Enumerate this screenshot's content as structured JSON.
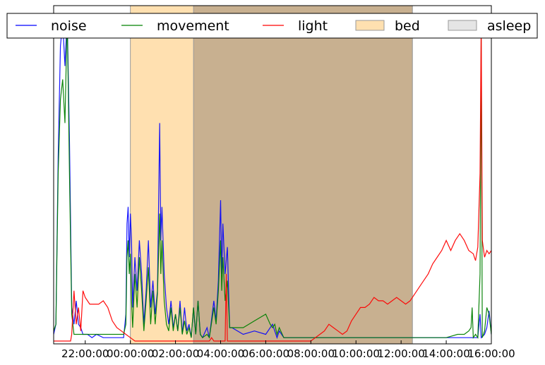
{
  "chart_data": {
    "type": "line",
    "title": "",
    "xlabel": "",
    "ylabel": "",
    "x_unit": "hours since 20:00 of first day",
    "xlim": [
      0.6,
      20.0
    ],
    "ylim": [
      0,
      1
    ],
    "x_tick_labels": [
      "22:00:00",
      "00:00:00",
      "02:00:00",
      "04:00:00",
      "06:00:00",
      "08:00:00",
      "10:00:00",
      "12:00:00",
      "14:00:00",
      "16:00:00"
    ],
    "x_tick_values": [
      2,
      4,
      6,
      8,
      10,
      12,
      14,
      16,
      18,
      20
    ],
    "grid": false,
    "legend": {
      "placement": "top",
      "entries": [
        {
          "label": "noise",
          "kind": "line",
          "color": "#0000ff"
        },
        {
          "label": "movement",
          "kind": "line",
          "color": "#008000"
        },
        {
          "label": "light",
          "kind": "line",
          "color": "#ff0000"
        },
        {
          "label": "bed",
          "kind": "patch",
          "color": "#ffe0b0"
        },
        {
          "label": "asleep",
          "kind": "patch",
          "color": "#e5e5e5"
        }
      ]
    },
    "spans": [
      {
        "name": "bed",
        "start": 4.0,
        "end": 16.5,
        "color": "#ffe0b0"
      },
      {
        "name": "asleep",
        "start": 6.8,
        "end": 16.5,
        "color": "#c8b090"
      }
    ],
    "series": [
      {
        "name": "noise",
        "color": "#0000ff",
        "points": [
          [
            0.6,
            0.02
          ],
          [
            0.7,
            0.05
          ],
          [
            0.8,
            0.55
          ],
          [
            0.9,
            0.88
          ],
          [
            1.0,
            0.95
          ],
          [
            1.1,
            0.82
          ],
          [
            1.2,
            0.97
          ],
          [
            1.3,
            0.6
          ],
          [
            1.4,
            0.1
          ],
          [
            1.5,
            0.05
          ],
          [
            1.6,
            0.12
          ],
          [
            1.7,
            0.05
          ],
          [
            1.8,
            0.04
          ],
          [
            1.9,
            0.02
          ],
          [
            2.1,
            0.02
          ],
          [
            2.3,
            0.01
          ],
          [
            2.5,
            0.02
          ],
          [
            2.8,
            0.01
          ],
          [
            3.2,
            0.01
          ],
          [
            3.5,
            0.01
          ],
          [
            3.7,
            0.01
          ],
          [
            3.8,
            0.08
          ],
          [
            3.85,
            0.35
          ],
          [
            3.9,
            0.4
          ],
          [
            3.95,
            0.25
          ],
          [
            4.0,
            0.38
          ],
          [
            4.05,
            0.3
          ],
          [
            4.1,
            0.1
          ],
          [
            4.2,
            0.25
          ],
          [
            4.3,
            0.15
          ],
          [
            4.4,
            0.3
          ],
          [
            4.5,
            0.2
          ],
          [
            4.6,
            0.05
          ],
          [
            4.7,
            0.15
          ],
          [
            4.8,
            0.3
          ],
          [
            4.9,
            0.1
          ],
          [
            5.0,
            0.18
          ],
          [
            5.1,
            0.08
          ],
          [
            5.2,
            0.15
          ],
          [
            5.3,
            0.65
          ],
          [
            5.35,
            0.3
          ],
          [
            5.4,
            0.4
          ],
          [
            5.5,
            0.2
          ],
          [
            5.6,
            0.1
          ],
          [
            5.7,
            0.05
          ],
          [
            5.8,
            0.12
          ],
          [
            5.9,
            0.04
          ],
          [
            6.0,
            0.08
          ],
          [
            6.1,
            0.03
          ],
          [
            6.2,
            0.12
          ],
          [
            6.3,
            0.02
          ],
          [
            6.4,
            0.1
          ],
          [
            6.5,
            0.03
          ],
          [
            6.6,
            0.05
          ],
          [
            6.7,
            0.01
          ],
          [
            6.8,
            0.1
          ],
          [
            6.9,
            0.02
          ],
          [
            7.0,
            0.12
          ],
          [
            7.1,
            0.02
          ],
          [
            7.2,
            0.01
          ],
          [
            7.4,
            0.04
          ],
          [
            7.5,
            0.01
          ],
          [
            7.7,
            0.12
          ],
          [
            7.8,
            0.06
          ],
          [
            7.9,
            0.18
          ],
          [
            8.0,
            0.42
          ],
          [
            8.05,
            0.2
          ],
          [
            8.1,
            0.35
          ],
          [
            8.2,
            0.2
          ],
          [
            8.3,
            0.28
          ],
          [
            8.4,
            0.04
          ],
          [
            8.5,
            0.04
          ],
          [
            9.0,
            0.02
          ],
          [
            9.5,
            0.03
          ],
          [
            10.0,
            0.02
          ],
          [
            10.3,
            0.05
          ],
          [
            10.5,
            0.01
          ],
          [
            10.6,
            0.03
          ],
          [
            10.8,
            0.01
          ],
          [
            11.0,
            0.01
          ],
          [
            11.5,
            0.01
          ],
          [
            12.0,
            0.01
          ],
          [
            12.5,
            0.01
          ],
          [
            13.0,
            0.01
          ],
          [
            13.5,
            0.01
          ],
          [
            14.0,
            0.01
          ],
          [
            14.5,
            0.01
          ],
          [
            15.0,
            0.01
          ],
          [
            15.5,
            0.01
          ],
          [
            16.0,
            0.01
          ],
          [
            16.5,
            0.01
          ],
          [
            17.0,
            0.01
          ],
          [
            17.5,
            0.01
          ],
          [
            18.0,
            0.01
          ],
          [
            18.5,
            0.01
          ],
          [
            19.0,
            0.01
          ],
          [
            19.4,
            0.01
          ],
          [
            19.5,
            0.08
          ],
          [
            19.55,
            0.01
          ],
          [
            19.7,
            0.02
          ],
          [
            19.8,
            0.04
          ],
          [
            19.9,
            0.09
          ],
          [
            20.0,
            0.02
          ]
        ]
      },
      {
        "name": "movement",
        "color": "#008000",
        "points": [
          [
            0.6,
            0.03
          ],
          [
            0.7,
            0.05
          ],
          [
            0.8,
            0.5
          ],
          [
            0.9,
            0.72
          ],
          [
            1.0,
            0.78
          ],
          [
            1.1,
            0.65
          ],
          [
            1.2,
            0.97
          ],
          [
            1.3,
            0.5
          ],
          [
            1.4,
            0.08
          ],
          [
            1.5,
            0.02
          ],
          [
            1.6,
            0.02
          ],
          [
            2.0,
            0.02
          ],
          [
            2.5,
            0.02
          ],
          [
            3.0,
            0.02
          ],
          [
            3.5,
            0.02
          ],
          [
            3.7,
            0.02
          ],
          [
            3.8,
            0.05
          ],
          [
            3.85,
            0.25
          ],
          [
            3.9,
            0.3
          ],
          [
            3.95,
            0.2
          ],
          [
            4.0,
            0.26
          ],
          [
            4.05,
            0.12
          ],
          [
            4.1,
            0.04
          ],
          [
            4.2,
            0.2
          ],
          [
            4.3,
            0.1
          ],
          [
            4.4,
            0.25
          ],
          [
            4.5,
            0.15
          ],
          [
            4.6,
            0.03
          ],
          [
            4.7,
            0.12
          ],
          [
            4.8,
            0.22
          ],
          [
            4.9,
            0.05
          ],
          [
            5.0,
            0.15
          ],
          [
            5.1,
            0.05
          ],
          [
            5.2,
            0.14
          ],
          [
            5.3,
            0.38
          ],
          [
            5.35,
            0.2
          ],
          [
            5.4,
            0.3
          ],
          [
            5.5,
            0.12
          ],
          [
            5.6,
            0.05
          ],
          [
            5.7,
            0.03
          ],
          [
            5.8,
            0.1
          ],
          [
            5.9,
            0.03
          ],
          [
            6.0,
            0.08
          ],
          [
            6.1,
            0.03
          ],
          [
            6.2,
            0.1
          ],
          [
            6.3,
            0.02
          ],
          [
            6.4,
            0.06
          ],
          [
            6.5,
            0.02
          ],
          [
            6.6,
            0.04
          ],
          [
            6.7,
            0.01
          ],
          [
            6.8,
            0.1
          ],
          [
            6.9,
            0.02
          ],
          [
            7.0,
            0.12
          ],
          [
            7.1,
            0.02
          ],
          [
            7.2,
            0.01
          ],
          [
            7.4,
            0.02
          ],
          [
            7.5,
            0.01
          ],
          [
            7.7,
            0.1
          ],
          [
            7.8,
            0.05
          ],
          [
            7.9,
            0.15
          ],
          [
            8.0,
            0.3
          ],
          [
            8.05,
            0.15
          ],
          [
            8.1,
            0.25
          ],
          [
            8.2,
            0.12
          ],
          [
            8.3,
            0.18
          ],
          [
            8.4,
            0.04
          ],
          [
            8.5,
            0.04
          ],
          [
            9.0,
            0.04
          ],
          [
            9.5,
            0.06
          ],
          [
            10.0,
            0.08
          ],
          [
            10.2,
            0.05
          ],
          [
            10.3,
            0.04
          ],
          [
            10.4,
            0.05
          ],
          [
            10.5,
            0.02
          ],
          [
            10.6,
            0.04
          ],
          [
            10.8,
            0.01
          ],
          [
            11.0,
            0.01
          ],
          [
            11.5,
            0.01
          ],
          [
            12.0,
            0.01
          ],
          [
            12.5,
            0.01
          ],
          [
            13.0,
            0.01
          ],
          [
            13.5,
            0.01
          ],
          [
            14.0,
            0.01
          ],
          [
            14.5,
            0.01
          ],
          [
            15.0,
            0.01
          ],
          [
            15.5,
            0.01
          ],
          [
            16.0,
            0.01
          ],
          [
            16.5,
            0.01
          ],
          [
            17.0,
            0.01
          ],
          [
            17.5,
            0.01
          ],
          [
            18.0,
            0.01
          ],
          [
            18.5,
            0.02
          ],
          [
            18.8,
            0.02
          ],
          [
            19.0,
            0.03
          ],
          [
            19.1,
            0.04
          ],
          [
            19.15,
            0.1
          ],
          [
            19.2,
            0.01
          ],
          [
            19.3,
            0.02
          ],
          [
            19.4,
            0.01
          ],
          [
            19.5,
            0.2
          ],
          [
            19.55,
            0.9
          ],
          [
            19.6,
            0.01
          ],
          [
            19.7,
            0.03
          ],
          [
            19.8,
            0.1
          ],
          [
            19.9,
            0.08
          ],
          [
            20.0,
            0.02
          ]
        ]
      },
      {
        "name": "light",
        "color": "#ff0000",
        "points": [
          [
            0.6,
            0.0
          ],
          [
            1.0,
            0.0
          ],
          [
            1.35,
            0.0
          ],
          [
            1.4,
            0.02
          ],
          [
            1.5,
            0.15
          ],
          [
            1.6,
            0.05
          ],
          [
            1.7,
            0.1
          ],
          [
            1.8,
            0.03
          ],
          [
            1.9,
            0.15
          ],
          [
            2.0,
            0.13
          ],
          [
            2.2,
            0.11
          ],
          [
            2.4,
            0.11
          ],
          [
            2.6,
            0.11
          ],
          [
            2.8,
            0.12
          ],
          [
            3.0,
            0.1
          ],
          [
            3.1,
            0.08
          ],
          [
            3.2,
            0.06
          ],
          [
            3.4,
            0.04
          ],
          [
            3.6,
            0.03
          ],
          [
            3.8,
            0.02
          ],
          [
            4.0,
            0.01
          ],
          [
            4.2,
            0.0
          ],
          [
            4.5,
            0.0
          ],
          [
            5.0,
            0.0
          ],
          [
            5.5,
            0.0
          ],
          [
            6.0,
            0.0
          ],
          [
            6.5,
            0.0
          ],
          [
            7.0,
            0.0
          ],
          [
            7.5,
            0.0
          ],
          [
            7.6,
            0.01
          ],
          [
            7.7,
            0.0
          ],
          [
            8.0,
            0.0
          ],
          [
            8.2,
            0.0
          ],
          [
            8.25,
            0.2
          ],
          [
            8.3,
            0.0
          ],
          [
            8.5,
            0.0
          ],
          [
            9.0,
            0.0
          ],
          [
            9.5,
            0.0
          ],
          [
            10.0,
            0.0
          ],
          [
            10.5,
            0.0
          ],
          [
            11.0,
            0.0
          ],
          [
            11.5,
            0.0
          ],
          [
            12.0,
            0.0
          ],
          [
            12.2,
            0.01
          ],
          [
            12.4,
            0.02
          ],
          [
            12.6,
            0.03
          ],
          [
            12.8,
            0.05
          ],
          [
            13.0,
            0.04
          ],
          [
            13.2,
            0.03
          ],
          [
            13.4,
            0.02
          ],
          [
            13.6,
            0.03
          ],
          [
            13.8,
            0.06
          ],
          [
            14.0,
            0.08
          ],
          [
            14.2,
            0.1
          ],
          [
            14.4,
            0.1
          ],
          [
            14.6,
            0.11
          ],
          [
            14.8,
            0.13
          ],
          [
            15.0,
            0.12
          ],
          [
            15.2,
            0.12
          ],
          [
            15.4,
            0.11
          ],
          [
            15.6,
            0.12
          ],
          [
            15.8,
            0.13
          ],
          [
            16.0,
            0.12
          ],
          [
            16.2,
            0.11
          ],
          [
            16.4,
            0.12
          ],
          [
            16.6,
            0.14
          ],
          [
            16.8,
            0.16
          ],
          [
            17.0,
            0.18
          ],
          [
            17.2,
            0.2
          ],
          [
            17.4,
            0.23
          ],
          [
            17.6,
            0.25
          ],
          [
            17.8,
            0.27
          ],
          [
            18.0,
            0.3
          ],
          [
            18.2,
            0.27
          ],
          [
            18.4,
            0.3
          ],
          [
            18.6,
            0.32
          ],
          [
            18.8,
            0.3
          ],
          [
            19.0,
            0.27
          ],
          [
            19.2,
            0.26
          ],
          [
            19.3,
            0.24
          ],
          [
            19.4,
            0.28
          ],
          [
            19.5,
            0.5
          ],
          [
            19.55,
            0.95
          ],
          [
            19.6,
            0.3
          ],
          [
            19.7,
            0.25
          ],
          [
            19.8,
            0.27
          ],
          [
            19.9,
            0.26
          ],
          [
            20.0,
            0.27
          ]
        ]
      }
    ]
  }
}
